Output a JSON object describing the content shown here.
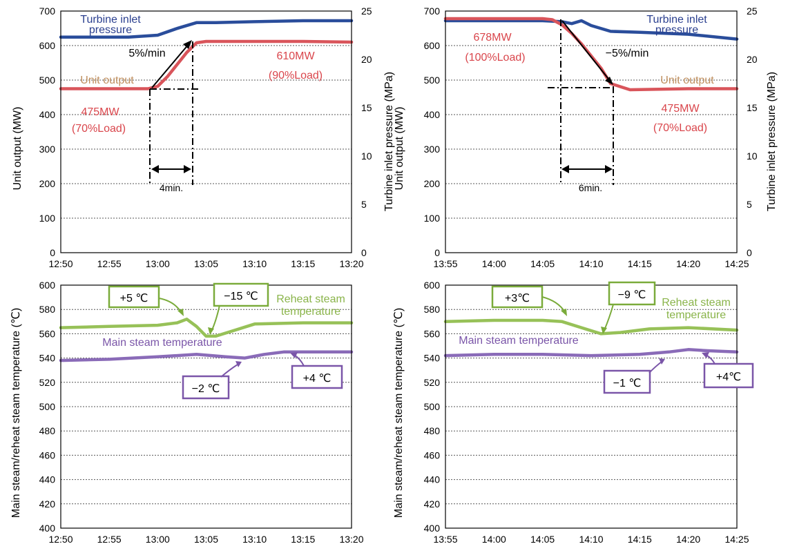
{
  "chart_data": [
    {
      "id": "top-left",
      "type": "line",
      "x_ticks": [
        "12:50",
        "12:55",
        "13:00",
        "13:05",
        "13:10",
        "13:15",
        "13:20"
      ],
      "x_range": [
        "12:50",
        "13:20"
      ],
      "ylabel": "Unit output (MW)",
      "ylim": [
        0,
        700
      ],
      "y_ticks": [
        0,
        100,
        200,
        300,
        400,
        500,
        600,
        700
      ],
      "y2label": "Turbine inlet pressure (MPa)",
      "y2lim": [
        0,
        25
      ],
      "y2_ticks": [
        0,
        5,
        10,
        15,
        20,
        25
      ],
      "grid": true,
      "series": [
        {
          "name": "Turbine inlet pressure",
          "axis": "y2",
          "color": "#2a4d9b",
          "x": [
            "12:50",
            "12:57",
            "13:00",
            "13:02",
            "13:04",
            "13:06",
            "13:10",
            "13:15",
            "13:20"
          ],
          "y": [
            22.3,
            22.3,
            22.5,
            23.2,
            23.8,
            23.8,
            23.9,
            24.0,
            24.0
          ]
        },
        {
          "name": "Unit output",
          "axis": "y",
          "color": "#d9555b",
          "x": [
            "12:50",
            "12:55",
            "12:59",
            "13:00",
            "13:01",
            "13:02",
            "13:03",
            "13:04",
            "13:05",
            "13:10",
            "13:15",
            "13:20"
          ],
          "y": [
            475,
            475,
            475,
            482,
            510,
            545,
            580,
            608,
            612,
            612,
            612,
            610
          ]
        }
      ],
      "annotations": {
        "pressure_label_line1": "Turbine inlet",
        "pressure_label_line2": "pressure",
        "output_label": "Unit output",
        "rate": "5%/min",
        "start_value": "475MW",
        "start_load": "(70%Load)",
        "end_value": "610MW",
        "end_load": "(90%Load)",
        "duration": "4min."
      }
    },
    {
      "id": "top-right",
      "type": "line",
      "x_ticks": [
        "13:55",
        "14:00",
        "14:05",
        "14:10",
        "14:15",
        "14:20",
        "14:25"
      ],
      "x_range": [
        "13:55",
        "14:25"
      ],
      "ylabel": "Unit output (MW)",
      "ylim": [
        0,
        700
      ],
      "y_ticks": [
        0,
        100,
        200,
        300,
        400,
        500,
        600,
        700
      ],
      "y2label": "Turbine inlet pressure (MPa)",
      "y2lim": [
        0,
        25
      ],
      "y2_ticks": [
        0,
        5,
        10,
        15,
        20,
        25
      ],
      "grid": true,
      "series": [
        {
          "name": "Turbine inlet pressure",
          "axis": "y2",
          "color": "#2a4d9b",
          "x": [
            "13:55",
            "14:05",
            "14:07",
            "14:08",
            "14:09",
            "14:10",
            "14:12",
            "14:15",
            "14:20",
            "14:25"
          ],
          "y": [
            24.0,
            24.0,
            23.9,
            23.7,
            24.0,
            23.5,
            22.9,
            22.8,
            22.6,
            22.1
          ]
        },
        {
          "name": "Unit output",
          "axis": "y",
          "color": "#d9555b",
          "x": [
            "13:55",
            "14:05",
            "14:06",
            "14:07",
            "14:08",
            "14:09",
            "14:10",
            "14:11",
            "14:12",
            "14:14",
            "14:20",
            "14:25"
          ],
          "y": [
            678,
            678,
            675,
            660,
            635,
            605,
            570,
            535,
            490,
            472,
            475,
            475
          ]
        }
      ],
      "annotations": {
        "pressure_label_line1": "Turbine inlet",
        "pressure_label_line2": "pressure",
        "output_label": "Unit output",
        "rate": "−5%/min",
        "start_value": "678MW",
        "start_load": "(100%Load)",
        "end_value": "475MW",
        "end_load": "(70%Load)",
        "duration": "6min."
      }
    },
    {
      "id": "bottom-left",
      "type": "line",
      "x_ticks": [
        "12:50",
        "12:55",
        "13:00",
        "13:05",
        "13:10",
        "13:15",
        "13:20"
      ],
      "x_range": [
        "12:50",
        "13:20"
      ],
      "ylabel": "Main steam/reheat steam temperature (℃)",
      "ylim": [
        400,
        600
      ],
      "y_ticks": [
        400,
        420,
        440,
        460,
        480,
        500,
        520,
        540,
        560,
        580,
        600
      ],
      "grid": true,
      "series": [
        {
          "name": "Reheat steam temperature",
          "color": "#97c158",
          "x": [
            "12:50",
            "12:55",
            "13:00",
            "13:02",
            "13:03",
            "13:04",
            "13:05",
            "13:06",
            "13:08",
            "13:10",
            "13:15",
            "13:20"
          ],
          "y": [
            565,
            566,
            567,
            569,
            572,
            566,
            558,
            558,
            563,
            568,
            569,
            569
          ]
        },
        {
          "name": "Main steam temperature",
          "color": "#8a6bb8",
          "x": [
            "12:50",
            "12:55",
            "13:00",
            "13:04",
            "13:07",
            "13:09",
            "13:11",
            "13:13",
            "13:15",
            "13:20"
          ],
          "y": [
            538,
            539,
            541,
            543,
            541,
            540,
            543,
            545,
            545,
            545
          ]
        }
      ],
      "annotations": {
        "reheat_label_line1": "Reheat steam",
        "reheat_label_line2": "temperature",
        "main_label": "Main steam temperature",
        "box1": "+5 ℃",
        "box2": "−15 ℃",
        "box3": "−2 ℃",
        "box4": "+4 ℃"
      }
    },
    {
      "id": "bottom-right",
      "type": "line",
      "x_ticks": [
        "13:55",
        "14:00",
        "14:05",
        "14:10",
        "14:15",
        "14:20",
        "14:25"
      ],
      "x_range": [
        "13:55",
        "14:25"
      ],
      "ylabel": "Main steam/reheat steam temperature (℃)",
      "ylim": [
        400,
        600
      ],
      "y_ticks": [
        400,
        420,
        440,
        460,
        480,
        500,
        520,
        540,
        560,
        580,
        600
      ],
      "grid": true,
      "series": [
        {
          "name": "Reheat steam temperature",
          "color": "#97c158",
          "x": [
            "13:55",
            "14:00",
            "14:05",
            "14:07",
            "14:09",
            "14:11",
            "14:13",
            "14:16",
            "14:20",
            "14:25"
          ],
          "y": [
            570,
            571,
            571,
            570,
            565,
            560,
            561,
            564,
            565,
            563
          ]
        },
        {
          "name": "Main steam temperature",
          "color": "#8a6bb8",
          "x": [
            "13:55",
            "14:00",
            "14:05",
            "14:10",
            "14:15",
            "14:18",
            "14:20",
            "14:22",
            "14:25"
          ],
          "y": [
            542,
            543,
            543,
            542,
            543,
            545,
            547,
            546,
            545
          ]
        }
      ],
      "annotations": {
        "reheat_label_line1": "Reheat steam",
        "reheat_label_line2": "temperature",
        "main_label": "Main steam temperature",
        "box1": "+3℃",
        "box2": "−9 ℃",
        "box3": "−1 ℃",
        "box4": "+4℃"
      }
    }
  ]
}
